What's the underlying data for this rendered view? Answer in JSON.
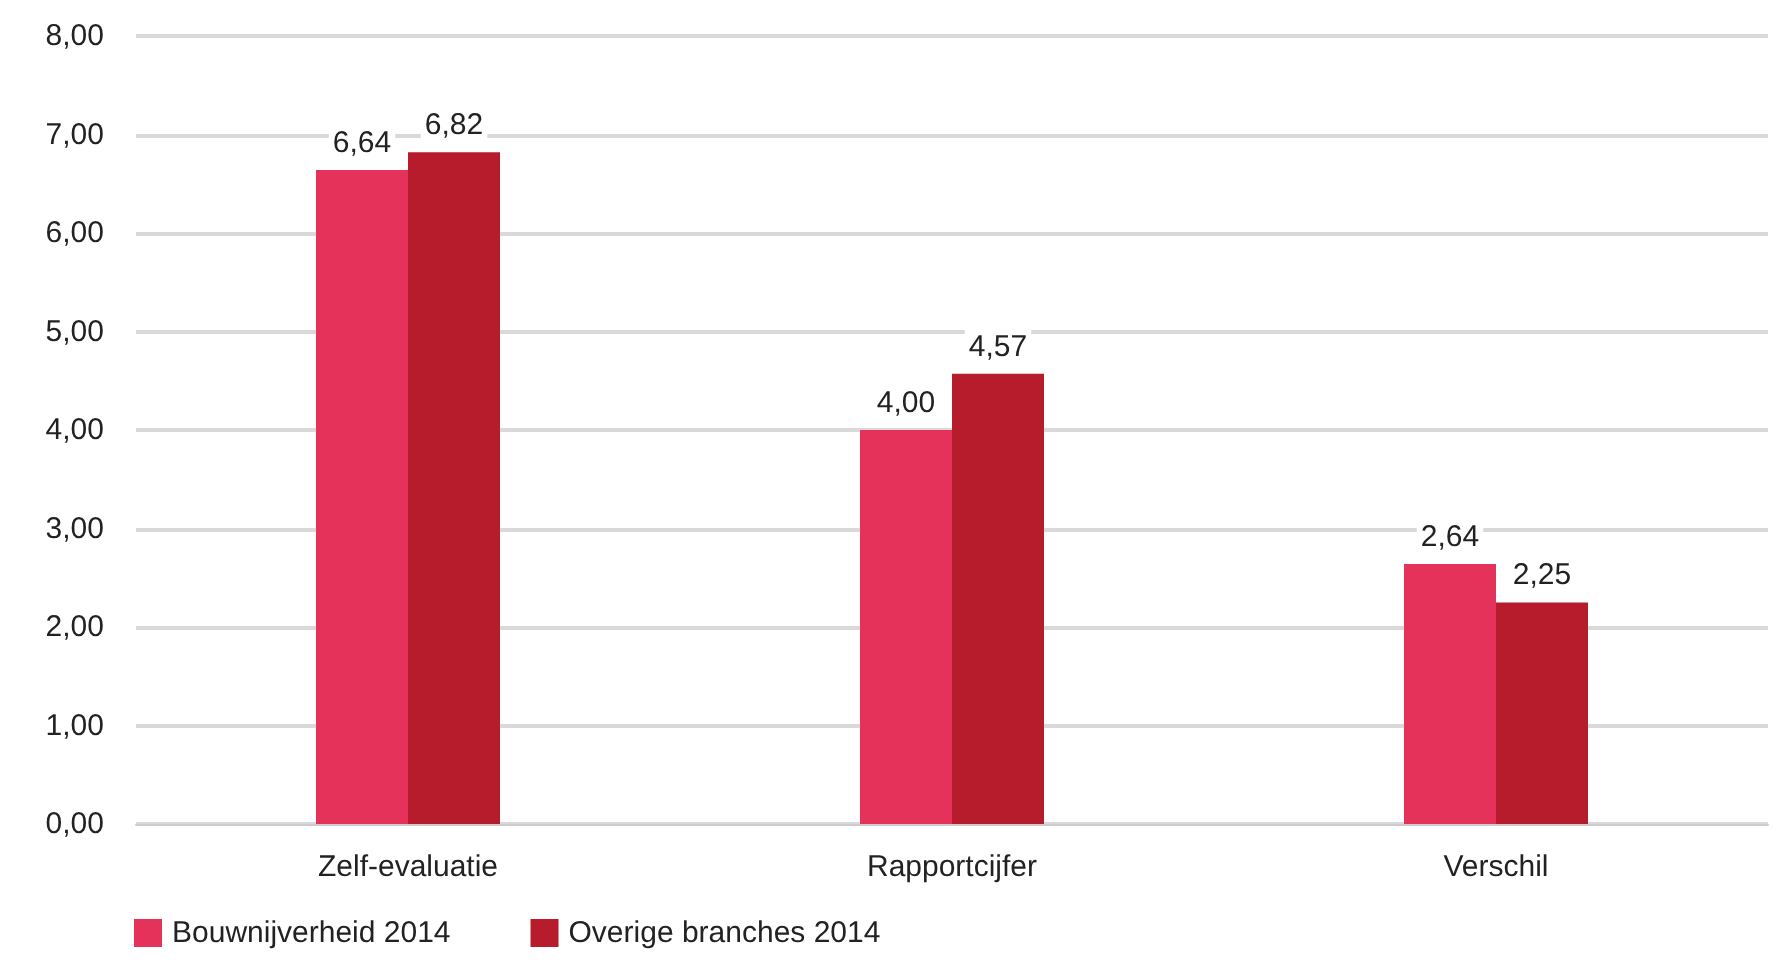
{
  "chart_data": {
    "type": "bar",
    "categories": [
      "Zelf-evaluatie",
      "Rapportcijfer",
      "Verschil"
    ],
    "series": [
      {
        "name": "Bouwnijverheid 2014",
        "color": "#e5325a",
        "values": [
          6.64,
          4.0,
          2.64
        ],
        "value_labels": [
          "6,64",
          "4,00",
          "2,64"
        ]
      },
      {
        "name": "Overige branches 2014",
        "color": "#b71c2c",
        "values": [
          6.82,
          4.57,
          2.25
        ],
        "value_labels": [
          "6,82",
          "4,57",
          "2,25"
        ]
      }
    ],
    "ylim": [
      0,
      8
    ],
    "yticks": [
      {
        "value": 0,
        "label": "0,00"
      },
      {
        "value": 1,
        "label": "1,00"
      },
      {
        "value": 2,
        "label": "2,00"
      },
      {
        "value": 3,
        "label": "3,00"
      },
      {
        "value": 4,
        "label": "4,00"
      },
      {
        "value": 5,
        "label": "5,00"
      },
      {
        "value": 6,
        "label": "6,00"
      },
      {
        "value": 7,
        "label": "7,00"
      },
      {
        "value": 8,
        "label": "8,00"
      }
    ],
    "grid": "y",
    "legend": "bottom left"
  }
}
